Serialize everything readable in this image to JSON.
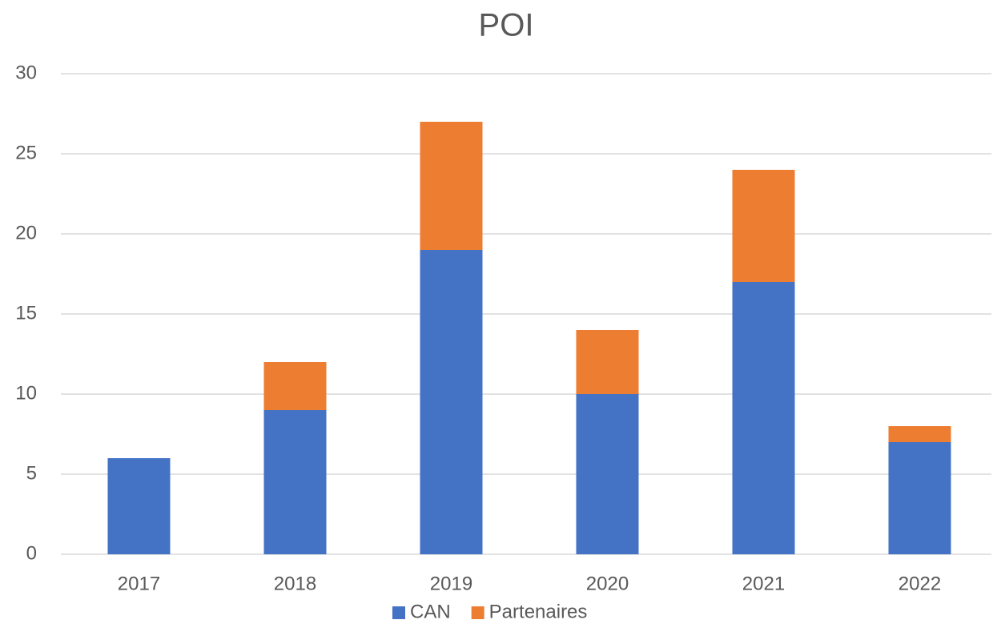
{
  "chart_data": {
    "type": "bar",
    "stacked": true,
    "title": "POI",
    "categories": [
      "2017",
      "2018",
      "2019",
      "2020",
      "2021",
      "2022"
    ],
    "series": [
      {
        "name": "CAN",
        "color": "#4472c4",
        "values": [
          6,
          9,
          19,
          10,
          17,
          7
        ]
      },
      {
        "name": "Partenaires",
        "color": "#ed7d31",
        "values": [
          0,
          3,
          8,
          4,
          7,
          1
        ]
      }
    ],
    "ylim": [
      0,
      30
    ],
    "yticks": [
      0,
      5,
      10,
      15,
      20,
      25,
      30
    ],
    "grid": true,
    "legend": "bottom"
  }
}
